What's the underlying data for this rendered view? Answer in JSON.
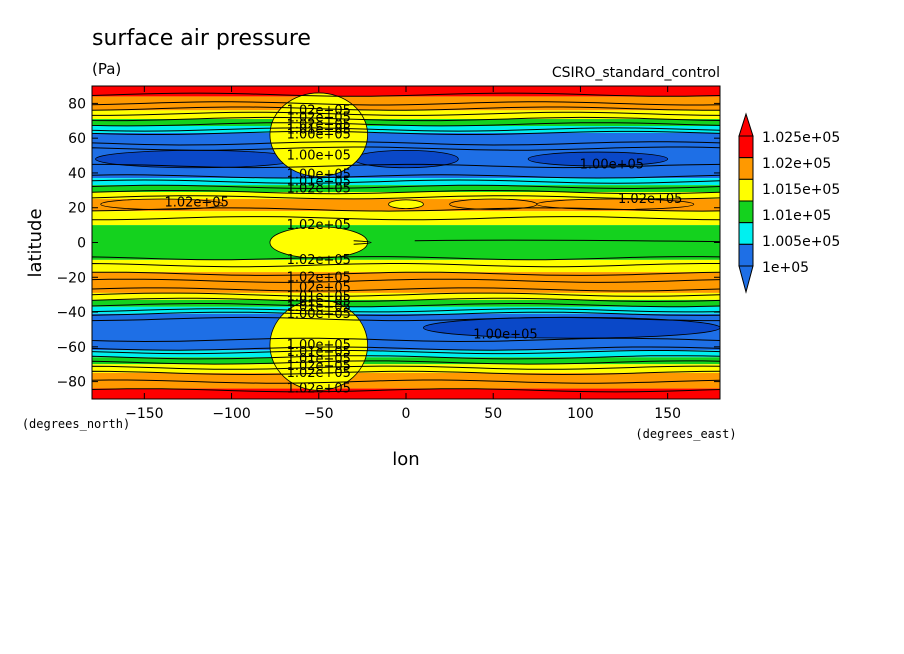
{
  "chart_data": {
    "type": "heatmap",
    "title": "surface air pressure",
    "units_label": "(Pa)",
    "source_label": "CSIRO_standard_control",
    "xlabel": "lon",
    "ylabel": "latitude",
    "x_units_label": "(degrees_east)",
    "y_units_label": "(degrees_north)",
    "xlim": [
      -180,
      180
    ],
    "ylim": [
      -90,
      90
    ],
    "x_ticks": [
      -150,
      -100,
      -50,
      0,
      50,
      100,
      150
    ],
    "y_ticks": [
      -80,
      -60,
      -40,
      -20,
      0,
      20,
      40,
      60,
      80
    ],
    "x_tick_labels": [
      "−150",
      "−100",
      "−50",
      "0",
      "50",
      "100",
      "150"
    ],
    "y_tick_labels": [
      "−80",
      "−60",
      "−40",
      "−20",
      "0",
      "20",
      "40",
      "60",
      "80"
    ],
    "colorbar": {
      "labels": [
        "1.025e+05",
        "1.02e+05",
        "1.015e+05",
        "1.01e+05",
        "1.005e+05",
        "1e+05"
      ],
      "levels": [
        100000,
        100500,
        101000,
        101500,
        102000,
        102500
      ],
      "colors": [
        "#1e6fe6",
        "#00f0f0",
        "#14d21e",
        "#ffff00",
        "#ff9900",
        "#ff0000"
      ],
      "under_color": "#1e6fe6",
      "over_color": "#ff0000"
    },
    "zonal_bands": [
      {
        "lat_from": 90,
        "lat_to": 84,
        "color": "#ff0000"
      },
      {
        "lat_from": 84,
        "lat_to": 76,
        "color": "#ff9900"
      },
      {
        "lat_from": 76,
        "lat_to": 71,
        "color": "#ffff00"
      },
      {
        "lat_from": 71,
        "lat_to": 67,
        "color": "#14d21e"
      },
      {
        "lat_from": 67,
        "lat_to": 63,
        "color": "#00f0f0"
      },
      {
        "lat_from": 63,
        "lat_to": 37,
        "color": "#1e6fe6"
      },
      {
        "lat_from": 37,
        "lat_to": 33,
        "color": "#00f0f0"
      },
      {
        "lat_from": 33,
        "lat_to": 29,
        "color": "#14d21e"
      },
      {
        "lat_from": 29,
        "lat_to": 25,
        "color": "#ffff00"
      },
      {
        "lat_from": 25,
        "lat_to": 18,
        "color": "#ff9900"
      },
      {
        "lat_from": 18,
        "lat_to": 10,
        "color": "#ffff00"
      },
      {
        "lat_from": 10,
        "lat_to": -10,
        "color": "#14d21e"
      },
      {
        "lat_from": -10,
        "lat_to": -17,
        "color": "#ffff00"
      },
      {
        "lat_from": -17,
        "lat_to": -29,
        "color": "#ff9900"
      },
      {
        "lat_from": -29,
        "lat_to": -33,
        "color": "#ffff00"
      },
      {
        "lat_from": -33,
        "lat_to": -37,
        "color": "#14d21e"
      },
      {
        "lat_from": -37,
        "lat_to": -41,
        "color": "#00f0f0"
      },
      {
        "lat_from": -41,
        "lat_to": -62,
        "color": "#1e6fe6"
      },
      {
        "lat_from": -62,
        "lat_to": -66,
        "color": "#00f0f0"
      },
      {
        "lat_from": -66,
        "lat_to": -70,
        "color": "#14d21e"
      },
      {
        "lat_from": -70,
        "lat_to": -75,
        "color": "#ffff00"
      },
      {
        "lat_from": -75,
        "lat_to": -84,
        "color": "#ff9900"
      },
      {
        "lat_from": -84,
        "lat_to": -90,
        "color": "#ff0000"
      }
    ],
    "regional_features": [
      {
        "lon_center": -120,
        "lat_center": 48,
        "lon_half_width": 58,
        "lat_half_width": 5,
        "color": "#0a48c8"
      },
      {
        "lon_center": 0,
        "lat_center": 48,
        "lon_half_width": 30,
        "lat_half_width": 5,
        "color": "#0a48c8"
      },
      {
        "lon_center": 110,
        "lat_center": 48,
        "lon_half_width": 40,
        "lat_half_width": 4,
        "color": "#0a48c8"
      },
      {
        "lon_center": 95,
        "lat_center": -49,
        "lon_half_width": 85,
        "lat_half_width": 6,
        "color": "#0a48c8"
      },
      {
        "lon_center": -55,
        "lat_center": -49,
        "lon_half_width": 14,
        "lat_half_width": 3,
        "color": "#0a48c8"
      },
      {
        "lon_center": -50,
        "lat_center": 62,
        "lon_half_width": 28,
        "lat_half_width": 24,
        "color": "#ffff00"
      },
      {
        "lon_center": -50,
        "lat_center": -59,
        "lon_half_width": 28,
        "lat_half_width": 26,
        "color": "#ffff00"
      },
      {
        "lon_center": -50,
        "lat_center": 0,
        "lon_half_width": 28,
        "lat_half_width": 9,
        "color": "#ffff00"
      },
      {
        "lon_center": -140,
        "lat_center": 22,
        "lon_half_width": 35,
        "lat_half_width": 3,
        "color": "#ff9900"
      },
      {
        "lon_center": 50,
        "lat_center": 22,
        "lon_half_width": 25,
        "lat_half_width": 3,
        "color": "#ff9900"
      },
      {
        "lon_center": 120,
        "lat_center": 22,
        "lon_half_width": 45,
        "lat_half_width": 3,
        "color": "#ff9900"
      },
      {
        "lon_center": 0,
        "lat_center": 22,
        "lon_half_width": 10,
        "lat_half_width": 2.5,
        "color": "#ffff00"
      }
    ],
    "contour_lines_lat": [
      85,
      80,
      77,
      74,
      71,
      68,
      65,
      63,
      57,
      54,
      44,
      38,
      35,
      32,
      29,
      26,
      19,
      14,
      -9,
      -13,
      -18,
      -22,
      -27,
      -30,
      -33,
      -36,
      -39,
      -41,
      -44,
      -56,
      -61,
      -63,
      -66,
      -69,
      -72,
      -75,
      -80,
      -85
    ],
    "contour_labels": [
      {
        "text": "1.02e+05",
        "lon": -50,
        "lat": 76
      },
      {
        "text": "1.02e+05",
        "lon": -50,
        "lat": 72
      },
      {
        "text": "1.02e+05",
        "lon": -50,
        "lat": 68
      },
      {
        "text": "1.01e+05",
        "lon": -50,
        "lat": 65
      },
      {
        "text": "1.00e+05",
        "lon": -50,
        "lat": 62
      },
      {
        "text": "1.00e+05",
        "lon": -50,
        "lat": 50
      },
      {
        "text": "1.00e+05",
        "lon": 118,
        "lat": 45
      },
      {
        "text": "1.00e+05",
        "lon": -50,
        "lat": 39
      },
      {
        "text": "1.01e+05",
        "lon": -50,
        "lat": 35
      },
      {
        "text": "1.02e+05",
        "lon": -50,
        "lat": 31
      },
      {
        "text": "1.02e+05",
        "lon": -120,
        "lat": 23
      },
      {
        "text": "1.02e+05",
        "lon": 140,
        "lat": 25
      },
      {
        "text": "1.02e+05",
        "lon": -50,
        "lat": 10
      },
      {
        "text": "1.02e+05",
        "lon": -50,
        "lat": -10
      },
      {
        "text": "1.02e+05",
        "lon": -50,
        "lat": -20
      },
      {
        "text": "1.02e+05",
        "lon": -50,
        "lat": -26
      },
      {
        "text": "1.01e+05",
        "lon": -50,
        "lat": -31
      },
      {
        "text": "1.01e+05",
        "lon": -50,
        "lat": -34
      },
      {
        "text": "1.01e+05",
        "lon": -50,
        "lat": -37
      },
      {
        "text": "1.00e+05",
        "lon": -50,
        "lat": -41
      },
      {
        "text": "1.00e+05",
        "lon": 57,
        "lat": -53
      },
      {
        "text": "1.00e+05",
        "lon": -50,
        "lat": -59
      },
      {
        "text": "1.01e+05",
        "lon": -50,
        "lat": -63
      },
      {
        "text": "1.01e+05",
        "lon": -50,
        "lat": -67
      },
      {
        "text": "1.02e+05",
        "lon": -50,
        "lat": -71
      },
      {
        "text": "1.02e+05",
        "lon": -50,
        "lat": -75
      },
      {
        "text": "1.02e+05",
        "lon": -50,
        "lat": -84
      }
    ]
  }
}
